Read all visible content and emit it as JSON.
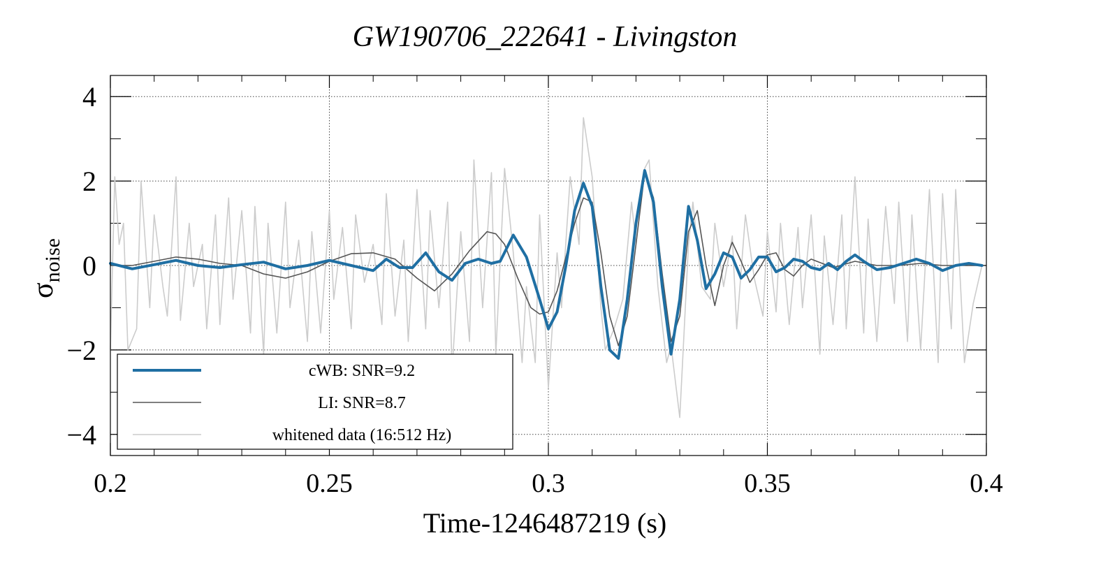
{
  "chart_data": {
    "type": "line",
    "title": "GW190706_222641 - Livingston",
    "xlabel": "Time-1246487219 (s)",
    "ylabel": {
      "symbol": "σ",
      "subscript": "noise"
    },
    "xlim": [
      0.2,
      0.4
    ],
    "ylim": [
      -4.5,
      4.5
    ],
    "x_ticks": [
      0.2,
      0.25,
      0.3,
      0.35,
      0.4
    ],
    "x_tick_labels": [
      "0.2",
      "0.25",
      "0.3",
      "0.35",
      "0.4"
    ],
    "y_ticks": [
      4,
      2,
      0,
      -2,
      -4
    ],
    "y_tick_labels": [
      "4",
      "2",
      "0",
      "−2",
      "−4"
    ],
    "grid": true,
    "legend_position": "bottom-left",
    "series": [
      {
        "name": "cWB: SNR=9.2",
        "color": "#1f6fa3",
        "style": "thick",
        "x": [
          0.2,
          0.205,
          0.21,
          0.215,
          0.22,
          0.225,
          0.23,
          0.235,
          0.24,
          0.245,
          0.25,
          0.255,
          0.26,
          0.263,
          0.266,
          0.269,
          0.272,
          0.275,
          0.278,
          0.281,
          0.284,
          0.287,
          0.289,
          0.292,
          0.295,
          0.298,
          0.3,
          0.302,
          0.304,
          0.306,
          0.308,
          0.31,
          0.312,
          0.314,
          0.316,
          0.318,
          0.32,
          0.322,
          0.324,
          0.326,
          0.328,
          0.33,
          0.332,
          0.334,
          0.336,
          0.338,
          0.34,
          0.342,
          0.344,
          0.346,
          0.348,
          0.35,
          0.352,
          0.354,
          0.356,
          0.358,
          0.36,
          0.362,
          0.364,
          0.366,
          0.368,
          0.37,
          0.372,
          0.375,
          0.378,
          0.381,
          0.384,
          0.387,
          0.39,
          0.393,
          0.396,
          0.399
        ],
        "y": [
          0.05,
          -0.08,
          0.02,
          0.12,
          0.0,
          -0.05,
          0.02,
          0.08,
          -0.08,
          0.0,
          0.12,
          0.0,
          -0.12,
          0.15,
          -0.05,
          -0.05,
          0.3,
          -0.15,
          -0.35,
          0.05,
          0.15,
          0.05,
          0.1,
          0.72,
          0.2,
          -0.8,
          -1.5,
          -1.1,
          0.0,
          1.3,
          1.95,
          1.4,
          -0.5,
          -2.0,
          -2.2,
          -0.8,
          1.0,
          2.25,
          1.5,
          -0.5,
          -2.1,
          -0.8,
          1.4,
          0.6,
          -0.55,
          -0.2,
          0.3,
          0.2,
          -0.3,
          -0.1,
          0.2,
          0.2,
          -0.15,
          -0.05,
          0.15,
          0.1,
          -0.05,
          -0.1,
          0.05,
          -0.1,
          0.1,
          0.25,
          0.1,
          -0.1,
          -0.05,
          0.05,
          0.15,
          0.05,
          -0.12,
          0.0,
          0.05,
          0.0
        ]
      },
      {
        "name": "LI: SNR=8.7",
        "color": "#555555",
        "style": "thin",
        "x": [
          0.2,
          0.205,
          0.21,
          0.215,
          0.22,
          0.225,
          0.23,
          0.235,
          0.24,
          0.245,
          0.25,
          0.255,
          0.26,
          0.265,
          0.27,
          0.274,
          0.278,
          0.282,
          0.286,
          0.288,
          0.29,
          0.293,
          0.296,
          0.298,
          0.3,
          0.302,
          0.304,
          0.306,
          0.308,
          0.31,
          0.312,
          0.314,
          0.316,
          0.318,
          0.32,
          0.322,
          0.324,
          0.326,
          0.328,
          0.33,
          0.332,
          0.334,
          0.336,
          0.338,
          0.34,
          0.342,
          0.344,
          0.346,
          0.348,
          0.35,
          0.352,
          0.354,
          0.356,
          0.358,
          0.36,
          0.365,
          0.37,
          0.375,
          0.38,
          0.385,
          0.39,
          0.395,
          0.399
        ],
        "y": [
          0.0,
          0.0,
          0.1,
          0.2,
          0.15,
          0.05,
          0.0,
          -0.2,
          -0.3,
          -0.15,
          0.1,
          0.28,
          0.3,
          0.15,
          -0.3,
          -0.6,
          -0.2,
          0.35,
          0.8,
          0.75,
          0.5,
          -0.3,
          -1.0,
          -1.15,
          -1.1,
          -0.6,
          0.2,
          1.0,
          1.6,
          1.5,
          0.3,
          -1.2,
          -1.9,
          -1.2,
          0.5,
          2.2,
          1.6,
          -0.2,
          -1.8,
          -1.2,
          0.8,
          1.3,
          0.0,
          -0.95,
          0.0,
          0.55,
          0.1,
          -0.4,
          -0.1,
          0.25,
          0.3,
          -0.1,
          -0.25,
          0.0,
          0.15,
          -0.05,
          0.1,
          0.0,
          0.0,
          0.05,
          0.0,
          0.0,
          0.0
        ]
      },
      {
        "name": "whitened data (16:512 Hz)",
        "color": "#cccccc",
        "style": "thin",
        "x": [
          0.2,
          0.201,
          0.202,
          0.203,
          0.204,
          0.206,
          0.207,
          0.209,
          0.21,
          0.212,
          0.213,
          0.215,
          0.216,
          0.218,
          0.219,
          0.221,
          0.222,
          0.224,
          0.225,
          0.227,
          0.228,
          0.23,
          0.232,
          0.233,
          0.235,
          0.236,
          0.238,
          0.24,
          0.241,
          0.243,
          0.245,
          0.246,
          0.248,
          0.25,
          0.251,
          0.253,
          0.255,
          0.256,
          0.258,
          0.26,
          0.262,
          0.263,
          0.265,
          0.267,
          0.268,
          0.27,
          0.272,
          0.273,
          0.275,
          0.277,
          0.278,
          0.28,
          0.282,
          0.283,
          0.285,
          0.287,
          0.288,
          0.29,
          0.292,
          0.294,
          0.295,
          0.297,
          0.298,
          0.3,
          0.302,
          0.303,
          0.305,
          0.307,
          0.308,
          0.31,
          0.312,
          0.313,
          0.315,
          0.317,
          0.319,
          0.32,
          0.322,
          0.323,
          0.325,
          0.327,
          0.328,
          0.33,
          0.332,
          0.333,
          0.335,
          0.337,
          0.338,
          0.34,
          0.342,
          0.343,
          0.345,
          0.347,
          0.349,
          0.35,
          0.352,
          0.353,
          0.355,
          0.357,
          0.358,
          0.36,
          0.362,
          0.363,
          0.365,
          0.367,
          0.368,
          0.37,
          0.372,
          0.373,
          0.375,
          0.377,
          0.379,
          0.38,
          0.382,
          0.383,
          0.385,
          0.387,
          0.389,
          0.39,
          0.392,
          0.393,
          0.395,
          0.397,
          0.399
        ],
        "y": [
          -2.0,
          2.1,
          0.5,
          1.0,
          -2.0,
          -1.5,
          2.0,
          -1.0,
          1.2,
          -0.5,
          -1.2,
          2.1,
          -1.3,
          1.0,
          -0.5,
          0.5,
          -1.5,
          1.2,
          -1.4,
          1.6,
          -0.8,
          1.3,
          -1.6,
          1.4,
          -2.1,
          1.0,
          -1.6,
          1.5,
          -1.0,
          0.6,
          -1.8,
          0.8,
          -1.6,
          1.3,
          -0.8,
          0.9,
          -1.5,
          1.2,
          -0.4,
          0.5,
          -1.4,
          1.7,
          -1.2,
          0.6,
          -1.8,
          1.8,
          -1.5,
          1.3,
          -1.0,
          1.5,
          -2.5,
          0.8,
          -1.8,
          2.5,
          -1.0,
          2.2,
          -2.1,
          2.3,
          0.3,
          -2.3,
          -0.5,
          -2.3,
          1.2,
          -2.9,
          0.3,
          -1.0,
          2.1,
          0.5,
          3.5,
          2.1,
          -1.0,
          -2.0,
          -1.5,
          -0.8,
          1.5,
          0.5,
          2.3,
          2.5,
          -0.5,
          -2.3,
          -1.9,
          -3.6,
          0.5,
          1.5,
          -0.5,
          -0.8,
          1.0,
          -0.5,
          0.7,
          -1.5,
          1.2,
          -0.3,
          -1.2,
          0.8,
          -1.1,
          1.0,
          -1.4,
          0.9,
          -1.0,
          1.2,
          -2.1,
          0.7,
          -1.4,
          1.2,
          -1.5,
          2.1,
          -1.6,
          1.1,
          -1.8,
          1.4,
          -0.9,
          1.5,
          -1.8,
          1.2,
          -2.0,
          1.8,
          -2.3,
          1.7,
          -1.5,
          1.8,
          -2.3,
          -0.9,
          0.0
        ]
      }
    ]
  }
}
